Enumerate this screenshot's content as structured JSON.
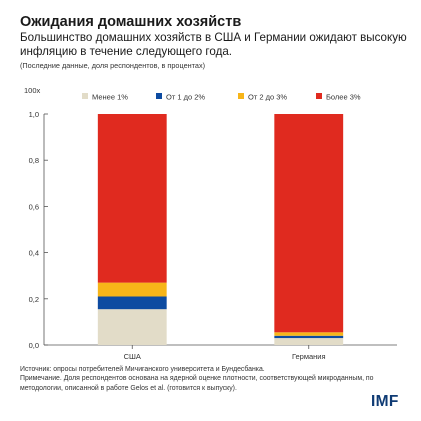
{
  "header": {
    "title": "Ожидания домашних хозяйств",
    "subtitle": "Большинство домашних хозяйств в США и Германии ожидают высокую инфляцию в течение следующего года.",
    "note": "(Последние данные, доля респондентов, в процентах)"
  },
  "chart_data": {
    "type": "bar",
    "stacked": true,
    "scale_label": "100x",
    "categories": [
      "США",
      "Германия"
    ],
    "series": [
      {
        "name": "Менее 1%",
        "color": "#e2dcc8",
        "values": [
          0.155,
          0.03
        ]
      },
      {
        "name": "От 1 до 2%",
        "color": "#0d4ba1",
        "values": [
          0.055,
          0.01
        ]
      },
      {
        "name": "От 2 до 3%",
        "color": "#f7b519",
        "values": [
          0.06,
          0.015
        ]
      },
      {
        "name": "Более 3%",
        "color": "#e02a1f",
        "values": [
          0.73,
          0.945
        ]
      }
    ],
    "ylim": [
      0,
      1.0
    ],
    "yticks": [
      "0,0",
      "0,2",
      "0,4",
      "0,6",
      "0,8",
      "1,0"
    ],
    "legend_position": "top",
    "grid": false
  },
  "footer": {
    "source": "Источник: опросы потребителей Мичиганского университета и Бундесбанка.",
    "note": "Примечание. Доля респондентов основана на ядерной оценке плотности, соответствующей микроданным, по методологии, описанной в работе Gelos et al. (готовится к выпуску)."
  },
  "logo": "IMF"
}
